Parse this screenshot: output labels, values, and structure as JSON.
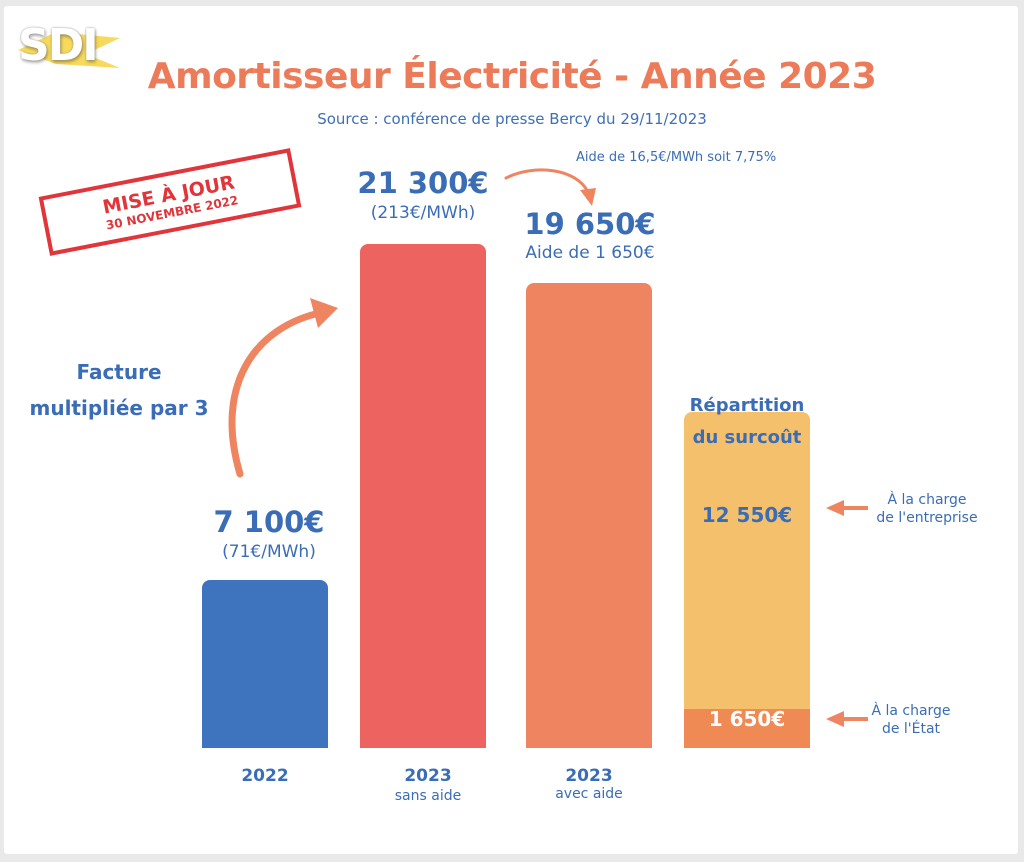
{
  "header": {
    "logo_text": "SDI",
    "title": "Amortisseur Électricité - Année 2023",
    "subtitle": "Source : conférence de presse Bercy du 29/11/2023"
  },
  "stamp": {
    "line1": "MISE À JOUR",
    "line2": "30 NOVEMBRE 2022",
    "color": "#e0353a"
  },
  "annotations": {
    "multiplier_line1": "Facture",
    "multiplier_line2": "multipliée par 3",
    "aid_note": "Aide de 16,5€/MWh soit 7,75%"
  },
  "chart_data": {
    "type": "bar",
    "title": "Amortisseur Électricité - Année 2023",
    "xlabel": "",
    "ylabel": "",
    "ylim": [
      0,
      21300
    ],
    "grid": false,
    "legend": "none",
    "bars": [
      {
        "category": "2022",
        "sub": "",
        "value": 7100,
        "label": "7 100€",
        "sublabel": "(71€/MWh)",
        "color": "#3e73be"
      },
      {
        "category": "2023",
        "sub": "sans aide",
        "value": 21300,
        "label": "21 300€",
        "sublabel": "(213€/MWh)",
        "color": "#ec6360"
      },
      {
        "category": "2023",
        "sub": "avec aide",
        "value": 19650,
        "label": "19 650€",
        "sublabel": "Aide de 1 650€",
        "color": "#ef8560"
      }
    ],
    "breakdown": {
      "title_line1": "Répartition",
      "title_line2": "du surcoût",
      "segments": [
        {
          "name": "À la charge de l'entreprise",
          "name_line1": "À la charge",
          "name_line2": "de l'entreprise",
          "value": 12550,
          "label": "12 550€",
          "color": "#f5c06b",
          "text_color": "#3a6db5"
        },
        {
          "name": "À la charge de l'État",
          "name_line1": "À la charge",
          "name_line2": "de l'État",
          "value": 1650,
          "label": "1 650€",
          "color": "#ef8a55",
          "text_color": "#ffffff"
        }
      ]
    }
  }
}
